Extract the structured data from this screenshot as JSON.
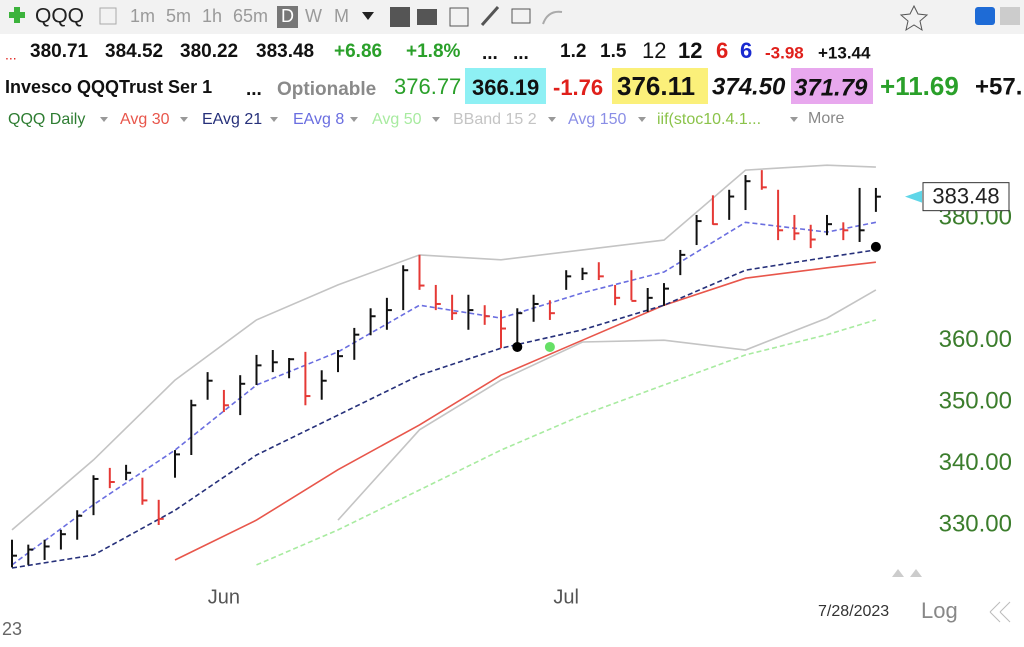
{
  "header": {
    "symbol": "QQQ",
    "intervals": [
      "1m",
      "5m",
      "1h",
      "65m",
      "D",
      "W",
      "M"
    ],
    "more": "More",
    "date": "7/28/2023",
    "scale": "Log",
    "year": "23"
  },
  "quote": [
    "...",
    "380.71",
    "384.52",
    "380.22",
    "383.48",
    "+6.86",
    "+1.8%",
    "...",
    "...",
    "1.2",
    "1.5",
    "12",
    "12",
    "6",
    "6",
    "-3.98",
    "+13.44"
  ],
  "info": [
    "Invesco QQQTrust Ser 1",
    "...",
    "Optionable",
    "376.77",
    "366.19",
    "-1.76",
    "376.11",
    "374.50",
    "371.79",
    "+11.69",
    "+57."
  ],
  "chart_data": {
    "type": "ohlc",
    "name": "QQQ Daily",
    "name_color": "#2e7d32",
    "up_color": "#111111",
    "down_color": "#e53935",
    "categories": [
      null,
      null,
      null,
      null,
      null,
      null,
      null,
      null,
      null,
      null,
      null,
      null,
      null,
      "Jun",
      null,
      null,
      null,
      null,
      null,
      null,
      null,
      null,
      null,
      null,
      null,
      null,
      null,
      null,
      null,
      null,
      null,
      null,
      null,
      null,
      "Jul",
      null,
      null,
      null,
      null,
      null,
      null,
      null,
      null,
      null,
      null,
      null,
      null,
      null,
      null,
      null,
      null,
      null,
      null,
      null
    ],
    "high": [
      327.6,
      326.8,
      327.6,
      329.2,
      332.4,
      338.1,
      339.3,
      339.8,
      337.7,
      334.1,
      342.2,
      350.4,
      354.9,
      352,
      354.4,
      357.7,
      358.5,
      357.2,
      358.2,
      355.2,
      358.5,
      362.1,
      365.3,
      367,
      372.3,
      374,
      369.1,
      367.5,
      367.5,
      365.8,
      365,
      365.3,
      367.5,
      366.6,
      371.5,
      371.9,
      372.8,
      369.1,
      371.5,
      368.6,
      369.4,
      374.8,
      380.5,
      383.7,
      384.6,
      387,
      387.8,
      384.6,
      380.5,
      378.9,
      380.5,
      379.3,
      384.9,
      384.9
    ],
    "low": [
      323.1,
      323.5,
      324.3,
      326,
      327.6,
      331.6,
      336,
      337.3,
      333.3,
      330,
      337.7,
      341.4,
      350.4,
      348.4,
      347.9,
      352.8,
      354.9,
      353.9,
      349.5,
      350.4,
      354.9,
      356.9,
      360.9,
      361.8,
      365,
      368.3,
      365,
      363.4,
      361.8,
      362.6,
      358.8,
      359.3,
      363.1,
      363.4,
      368.3,
      369.9,
      369.9,
      365.8,
      366.6,
      364.7,
      365.7,
      370.7,
      375.6,
      378.9,
      379.7,
      381.3,
      384.6,
      376.4,
      376.4,
      375.1,
      377.2,
      376.4,
      376.1,
      381
    ],
    "close": [
      325,
      326,
      326.5,
      328.5,
      331.5,
      337.5,
      337,
      338.5,
      334,
      331,
      341.5,
      349.5,
      353.5,
      349.5,
      353,
      356,
      356.5,
      357,
      351,
      353.5,
      357.5,
      361,
      364,
      365,
      371.5,
      369,
      366,
      364.5,
      365,
      364,
      362,
      364.5,
      366,
      364.5,
      370.5,
      371,
      370.5,
      367,
      366.5,
      367,
      368.5,
      374,
      379.5,
      379,
      383.5,
      386,
      385,
      378,
      377.5,
      376.5,
      379,
      378,
      378,
      383.48
    ],
    "series": [
      {
        "name": "BBand 15 2",
        "color": "#c4c4c4",
        "x": [
          0,
          5,
          10,
          15,
          20,
          25,
          30,
          35,
          40,
          45,
          50,
          53
        ],
        "values": [
          329.2,
          340.6,
          353.6,
          363.4,
          369.1,
          374,
          373.2,
          374.8,
          376.4,
          387.8,
          388.6,
          388.3
        ],
        "lower": [
          null,
          null,
          null,
          null,
          330.8,
          345.5,
          353.6,
          359.8,
          360.1,
          358.5,
          363.7,
          368.3
        ]
      },
      {
        "name": "Avg 50",
        "color": "#a8eba0",
        "dash": true,
        "x": [
          0,
          5,
          10,
          15,
          20,
          25,
          30,
          35,
          40,
          45,
          50,
          53
        ],
        "values": [
          null,
          null,
          null,
          323.5,
          329.2,
          335.7,
          342.2,
          347.9,
          352.8,
          357.7,
          361,
          363.4
        ]
      },
      {
        "name": "Avg 30",
        "color": "#e8564b",
        "x": [
          0,
          5,
          10,
          15,
          20,
          25,
          30,
          35,
          40,
          45,
          50,
          53
        ],
        "values": [
          null,
          null,
          324.3,
          330.8,
          339,
          346.3,
          354.4,
          360.1,
          365.8,
          370.2,
          371.9,
          372.8
        ]
      },
      {
        "name": "EAvg 21",
        "color": "#26307a",
        "dash": true,
        "x": [
          0,
          5,
          10,
          15,
          20,
          25,
          30,
          35,
          40,
          45,
          50,
          53
        ],
        "values": [
          323,
          325.1,
          332.4,
          341.4,
          347.9,
          354.4,
          358.8,
          361.8,
          365.8,
          371.5,
          373.6,
          374.8
        ]
      },
      {
        "name": "EAvg 8",
        "color": "#6a6ee0",
        "dash": true,
        "x": [
          0,
          5,
          10,
          15,
          20,
          25,
          30,
          35,
          40,
          45,
          50,
          53
        ],
        "values": [
          323.5,
          333.3,
          342.2,
          352.8,
          358.2,
          365.8,
          363.7,
          367.8,
          371.2,
          379.3,
          377.7,
          379.3
        ]
      }
    ],
    "legend_extra": [
      {
        "name": "Avg 150",
        "color": "#8a8ee6"
      },
      {
        "name": "iif(stoc10.4.1...",
        "color": "#8bc34a"
      }
    ],
    "signals": [
      {
        "x": 31,
        "value": 359,
        "color": "#000000"
      },
      {
        "x": 33,
        "value": 359,
        "color": "#66e066"
      },
      {
        "x": 53,
        "value": 375.3,
        "color": "#000000"
      }
    ],
    "ylim": [
      322,
      389.5
    ],
    "yticks": [
      {
        "value": 330,
        "label": "330.00"
      },
      {
        "value": 340,
        "label": "340.00"
      },
      {
        "value": 350,
        "label": "350.00"
      },
      {
        "value": 360,
        "label": "360.00"
      },
      {
        "value": 380,
        "label": "380.00"
      }
    ]
  }
}
